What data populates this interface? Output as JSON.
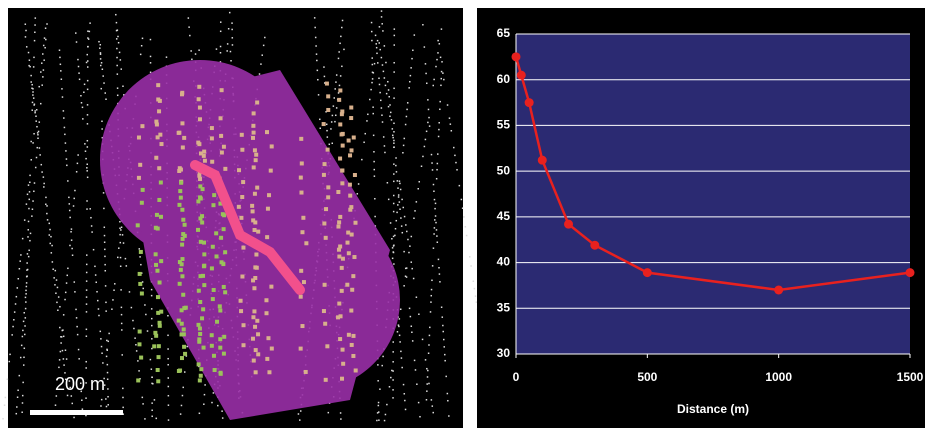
{
  "image_panel": {
    "scale_label": "200 m"
  },
  "chart_data": {
    "type": "line",
    "xlabel": "Distance (m)",
    "x": [
      0,
      20,
      50,
      100,
      200,
      300,
      500,
      1000,
      1500
    ],
    "series": [
      {
        "color": "#e8211f",
        "values": [
          62.5,
          60.5,
          57.5,
          51.2,
          44.2,
          41.9,
          38.9,
          37.0,
          38.9
        ]
      }
    ],
    "xlim": [
      0,
      1500
    ],
    "xticks": [
      0,
      500,
      1000,
      1500
    ],
    "ylim": [
      30,
      65
    ],
    "yticks": [
      30,
      35,
      40,
      45,
      50,
      55,
      60,
      65
    ],
    "grid": true,
    "background": "#2b2a72"
  }
}
